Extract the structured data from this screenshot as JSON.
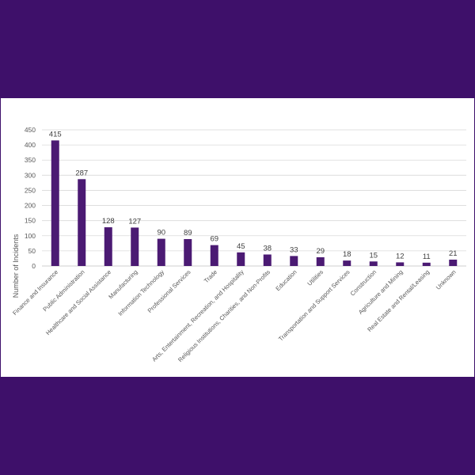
{
  "chart_data": {
    "type": "bar",
    "title": "",
    "xlabel": "",
    "ylabel": "Number of Incidents",
    "ylim": [
      0,
      450
    ],
    "yticks": [
      0,
      50,
      100,
      150,
      200,
      250,
      300,
      350,
      400,
      450
    ],
    "grid": true,
    "legend": "none",
    "categories": [
      "Finance and Insurance",
      "Public Administration",
      "Healthcare and Social Assistance",
      "Manufacturing",
      "Information Technology",
      "Professional Services",
      "Trade",
      "Arts, Entertainment, Recreation, and Hospitality",
      "Religious Institutions, Charities, and Non-Profits",
      "Education",
      "Utilities",
      "Transportation and Support Services",
      "Construction",
      "Agriculture and Mining",
      "Real Estate and Rental/Leasing",
      "Unknown"
    ],
    "values": [
      415,
      287,
      128,
      127,
      90,
      89,
      69,
      45,
      38,
      33,
      29,
      18,
      15,
      12,
      11,
      21
    ],
    "colors": {
      "bar": "#4b1a73",
      "grid": "#d9d9d9",
      "axis": "#bfbfbf",
      "background": "#3e106a",
      "panel": "#ffffff"
    }
  }
}
